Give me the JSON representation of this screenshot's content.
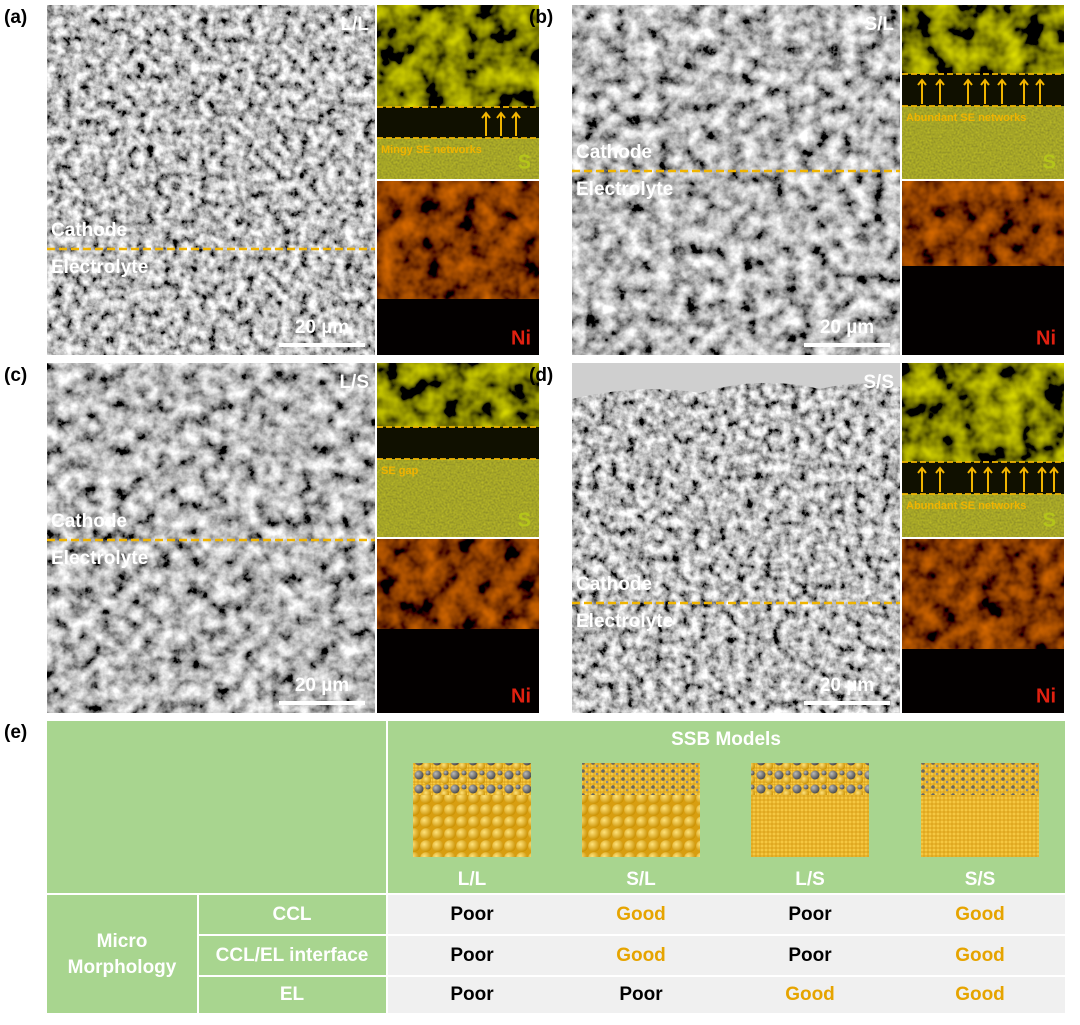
{
  "panels": [
    {
      "label": "(a)",
      "sample": "L/L",
      "cathode": "Cathode",
      "electrolyte": "Electrolyte",
      "scale_bar": "20 µm",
      "eds_s": "S",
      "eds_ni": "Ni",
      "annotation": "Mingy SE networks"
    },
    {
      "label": "(b)",
      "sample": "S/L",
      "cathode": "Cathode",
      "electrolyte": "Electrolyte",
      "scale_bar": "20 µm",
      "eds_s": "S",
      "eds_ni": "Ni",
      "annotation": "Abundant SE networks"
    },
    {
      "label": "(c)",
      "sample": "L/S",
      "cathode": "Cathode",
      "electrolyte": "Electrolyte",
      "scale_bar": "20 µm",
      "eds_s": "S",
      "eds_ni": "Ni",
      "annotation": "SE gap"
    },
    {
      "label": "(d)",
      "sample": "S/S",
      "cathode": "Cathode",
      "electrolyte": "Electrolyte",
      "scale_bar": "20 µm",
      "eds_s": "S",
      "eds_ni": "Ni",
      "annotation": "Abundant SE networks"
    }
  ],
  "panel_e": {
    "label": "(e)",
    "header": "SSB Models",
    "models": [
      "L/L",
      "S/L",
      "L/S",
      "S/S"
    ],
    "group": "Micro Morphology",
    "rows": [
      {
        "name": "CCL",
        "values": [
          "Poor",
          "Good",
          "Poor",
          "Good"
        ]
      },
      {
        "name": "CCL/EL interface",
        "values": [
          "Poor",
          "Good",
          "Poor",
          "Good"
        ]
      },
      {
        "name": "EL",
        "values": [
          "Poor",
          "Poor",
          "Good",
          "Good"
        ]
      }
    ]
  }
}
